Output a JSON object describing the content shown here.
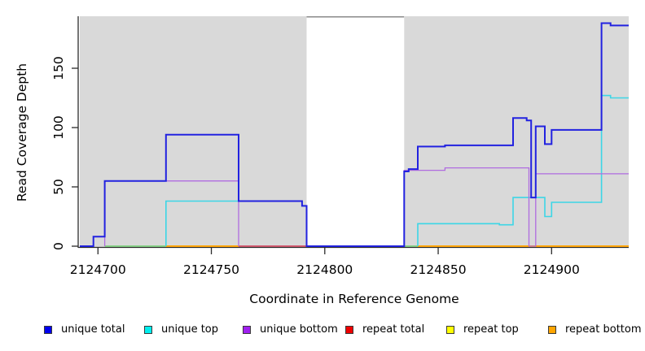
{
  "axes": {
    "x_title": "Coordinate in Reference Genome",
    "y_title": "Read Coverage Depth"
  },
  "legend": [
    {
      "label": "unique total",
      "swatch_color": "#0000ee"
    },
    {
      "label": "unique top",
      "swatch_color": "#00eeee"
    },
    {
      "label": "unique bottom",
      "swatch_color": "#a020f0"
    },
    {
      "label": "repeat total",
      "swatch_color": "#ee0000"
    },
    {
      "label": "repeat top",
      "swatch_color": "#ffff00"
    },
    {
      "label": "repeat bottom",
      "swatch_color": "#ffa500"
    }
  ],
  "chart_data": {
    "type": "line",
    "subtype": "step-coverage",
    "title": "",
    "xlabel": "Coordinate in Reference Genome",
    "ylabel": "Read Coverage Depth",
    "xlim": [
      2124692,
      2124934
    ],
    "ylim": [
      0,
      194
    ],
    "x_ticks": [
      2124700,
      2124750,
      2124800,
      2124850,
      2124900
    ],
    "y_ticks": [
      0,
      50,
      100,
      150
    ],
    "grid": false,
    "legend_position": "bottom",
    "axis_color": "#2b2b2b",
    "tick_label_color": "#000000",
    "background_regions": [
      {
        "x0": 2124692,
        "x1": 2124792,
        "color": "#d9d9d9"
      },
      {
        "x0": 2124792,
        "x1": 2124835,
        "color": "#ffffff",
        "top_border": "#8a8a8a"
      },
      {
        "x0": 2124835,
        "x1": 2124934,
        "color": "#d9d9d9"
      }
    ],
    "series": [
      {
        "name": "unique total",
        "color": "#0000ee",
        "line_color": "#2222e0",
        "line_width": 2,
        "segments": [
          [
            [
              2124692,
              0
            ],
            [
              2124698,
              0
            ],
            [
              2124698,
              8
            ],
            [
              2124703,
              8
            ],
            [
              2124703,
              55
            ],
            [
              2124730,
              55
            ],
            [
              2124730,
              94
            ],
            [
              2124762,
              94
            ],
            [
              2124762,
              38
            ],
            [
              2124790,
              38
            ],
            [
              2124790,
              34
            ],
            [
              2124792,
              34
            ],
            [
              2124792,
              0
            ],
            [
              2124835,
              0
            ],
            [
              2124835,
              63
            ],
            [
              2124837,
              63
            ],
            [
              2124837,
              65
            ],
            [
              2124841,
              65
            ],
            [
              2124841,
              84
            ],
            [
              2124853,
              84
            ],
            [
              2124853,
              85
            ],
            [
              2124883,
              85
            ],
            [
              2124883,
              108
            ],
            [
              2124889,
              108
            ],
            [
              2124889,
              106
            ],
            [
              2124891,
              106
            ],
            [
              2124891,
              41
            ],
            [
              2124893,
              41
            ],
            [
              2124893,
              101
            ],
            [
              2124897,
              101
            ],
            [
              2124897,
              86
            ],
            [
              2124900,
              86
            ],
            [
              2124900,
              98
            ],
            [
              2124922,
              98
            ],
            [
              2124922,
              188
            ],
            [
              2124926,
              188
            ],
            [
              2124926,
              186
            ],
            [
              2124934,
              186
            ]
          ]
        ]
      },
      {
        "name": "unique top",
        "color": "#00eeee",
        "line_color": "#3cd6e6",
        "line_width": 1.6,
        "segments": [
          [
            [
              2124730,
              0
            ],
            [
              2124730,
              38
            ],
            [
              2124790,
              38
            ],
            [
              2124790,
              34
            ],
            [
              2124792,
              34
            ],
            [
              2124792,
              0
            ]
          ],
          [
            [
              2124841,
              0
            ],
            [
              2124841,
              19
            ],
            [
              2124877,
              19
            ],
            [
              2124877,
              18
            ],
            [
              2124883,
              18
            ],
            [
              2124883,
              41
            ],
            [
              2124897,
              41
            ],
            [
              2124897,
              25
            ],
            [
              2124900,
              25
            ],
            [
              2124900,
              37
            ],
            [
              2124922,
              37
            ],
            [
              2124922,
              127
            ],
            [
              2124926,
              127
            ],
            [
              2124926,
              125
            ],
            [
              2124934,
              125
            ]
          ]
        ]
      },
      {
        "name": "unique bottom",
        "color": "#a020f0",
        "line_color": "#b06ce0",
        "line_width": 1.3,
        "segments": [
          [
            [
              2124703,
              0
            ],
            [
              2124703,
              55
            ],
            [
              2124762,
              55
            ],
            [
              2124762,
              0
            ]
          ],
          [
            [
              2124835,
              0
            ],
            [
              2124835,
              64
            ],
            [
              2124853,
              64
            ],
            [
              2124853,
              66
            ],
            [
              2124890,
              66
            ],
            [
              2124890,
              0
            ],
            [
              2124893,
              0
            ],
            [
              2124893,
              61
            ],
            [
              2124934,
              61
            ]
          ]
        ]
      },
      {
        "name": "repeat total",
        "color": "#ee0000",
        "line_color": "#d04a62",
        "line_width": 1.8,
        "segments": [
          [
            [
              2124762,
              0
            ],
            [
              2124792,
              0
            ]
          ]
        ]
      },
      {
        "name": "repeat top",
        "color": "#ffff00",
        "line_color": "#7ccf7c",
        "line_width": 1.8,
        "segments": [
          [
            [
              2124703,
              0
            ],
            [
              2124730,
              0
            ]
          ],
          [
            [
              2124835,
              0
            ],
            [
              2124841,
              0
            ]
          ]
        ]
      },
      {
        "name": "repeat bottom",
        "color": "#ffa500",
        "line_color": "#ffa500",
        "line_width": 2,
        "segments": [
          [
            [
              2124730,
              0
            ],
            [
              2124762,
              0
            ]
          ],
          [
            [
              2124841,
              0
            ],
            [
              2124934,
              0
            ]
          ]
        ]
      }
    ],
    "draw_order": [
      4,
      3,
      5,
      1,
      2,
      0
    ]
  }
}
